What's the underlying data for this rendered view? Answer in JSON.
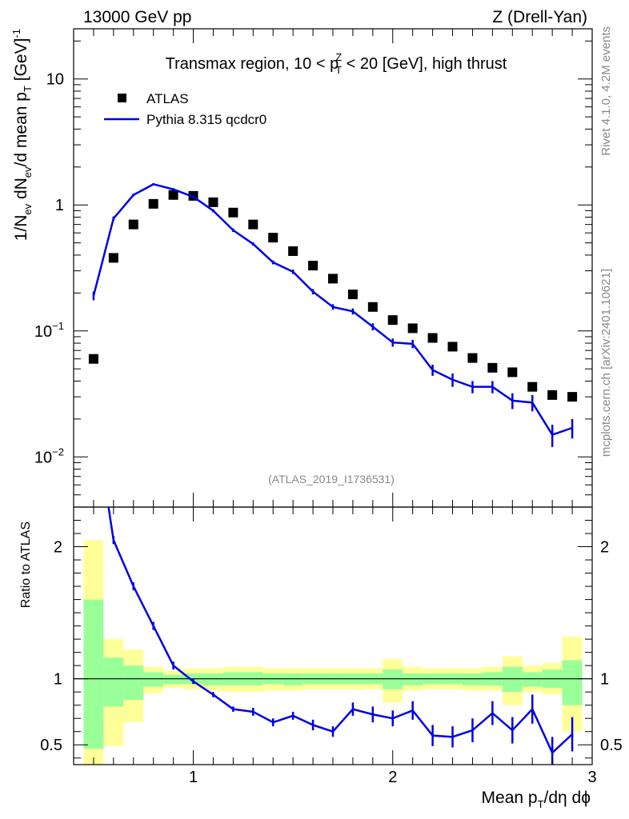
{
  "header": {
    "left": "13000 GeV pp",
    "right": "Z (Drell-Yan)"
  },
  "side": {
    "rivet": "Rivet 4.1.0,  4.2M events",
    "source": "mcplots.cern.ch [arXiv:2401.10621]"
  },
  "watermark": "(ATLAS_2019_I1736531)",
  "colors": {
    "data": "#000000",
    "mc": "#0000e6",
    "band_outer": "#ffff99",
    "band_inner": "#99ff99"
  },
  "chart_data": [
    {
      "type": "scatter",
      "panel": "main",
      "title_parts": {
        "pre": "Transmax region, 10 < p",
        "sup": "Z",
        "sub": "T",
        "post": " < 20 [GeV], high thrust"
      },
      "ylabel_parts": {
        "a": "1/N",
        "a_sub": "ev",
        "b": " dN",
        "b_sub": "ev",
        "c": "/d mean p",
        "c_sub": "T",
        "d": " [GeV]",
        "d_sup": "-1"
      },
      "yscale": "log",
      "xlim": [
        0.4,
        3.0
      ],
      "ylim": [
        0.004,
        25
      ],
      "xticks": [
        1,
        2,
        3
      ],
      "xtick_labels": [
        "1",
        "2",
        "3"
      ],
      "yticks": [
        0.01,
        0.1,
        1,
        10
      ],
      "ytick_labels": [
        {
          "base": "10",
          "exp": "−2"
        },
        {
          "base": "10",
          "exp": "−1"
        },
        {
          "base": "1",
          "exp": ""
        },
        {
          "base": "10",
          "exp": ""
        }
      ],
      "legend": {
        "position": "top-left",
        "entries": [
          {
            "label": "ATLAS",
            "marker": "square"
          },
          {
            "label": "Pythia 8.315 qcdcr0",
            "marker": "line"
          }
        ]
      },
      "series": [
        {
          "name": "ATLAS",
          "x": [
            0.5,
            0.6,
            0.7,
            0.8,
            0.9,
            1.0,
            1.1,
            1.2,
            1.3,
            1.4,
            1.5,
            1.6,
            1.7,
            1.8,
            1.9,
            2.0,
            2.1,
            2.2,
            2.3,
            2.4,
            2.5,
            2.6,
            2.7,
            2.8,
            2.9
          ],
          "y": [
            0.06,
            0.38,
            0.7,
            1.02,
            1.2,
            1.18,
            1.05,
            0.87,
            0.7,
            0.55,
            0.43,
            0.33,
            0.26,
            0.195,
            0.155,
            0.122,
            0.105,
            0.088,
            0.075,
            0.061,
            0.051,
            0.047,
            0.036,
            0.031,
            0.03
          ]
        },
        {
          "name": "Pythia 8.315 qcdcr0",
          "x": [
            0.5,
            0.6,
            0.7,
            0.8,
            0.9,
            1.0,
            1.1,
            1.2,
            1.3,
            1.4,
            1.5,
            1.6,
            1.7,
            1.8,
            1.9,
            2.0,
            2.1,
            2.2,
            2.3,
            2.4,
            2.5,
            2.6,
            2.7,
            2.8,
            2.9
          ],
          "y": [
            0.19,
            0.78,
            1.2,
            1.46,
            1.33,
            1.16,
            0.9,
            0.63,
            0.49,
            0.35,
            0.295,
            0.205,
            0.155,
            0.143,
            0.108,
            0.081,
            0.079,
            0.049,
            0.041,
            0.036,
            0.036,
            0.028,
            0.027,
            0.015,
            0.017
          ],
          "yerr": [
            0.015,
            0.03,
            0.03,
            0.03,
            0.03,
            0.03,
            0.025,
            0.02,
            0.015,
            0.012,
            0.012,
            0.01,
            0.008,
            0.008,
            0.007,
            0.006,
            0.006,
            0.005,
            0.005,
            0.004,
            0.004,
            0.004,
            0.004,
            0.003,
            0.003
          ]
        }
      ]
    },
    {
      "type": "line",
      "panel": "ratio",
      "ylabel": "Ratio to ATLAS",
      "xlabel_parts": {
        "pre": "Mean p",
        "sub": "T",
        "post": "/dη dϕ"
      },
      "xlim": [
        0.4,
        3.0
      ],
      "ylim": [
        0.35,
        2.3
      ],
      "xticks": [
        1,
        2,
        3
      ],
      "xtick_labels": [
        "1",
        "2",
        "3"
      ],
      "yticks": [
        0.5,
        1,
        2
      ],
      "ytick_labels": [
        "0.5",
        "1",
        "2"
      ],
      "bins": [
        {
          "x0": 0.45,
          "x1": 0.55,
          "outer": [
            0.3,
            2.05
          ],
          "inner": [
            0.47,
            1.6
          ]
        },
        {
          "x0": 0.55,
          "x1": 0.65,
          "outer": [
            0.49,
            1.3
          ],
          "inner": [
            0.79,
            1.16
          ]
        },
        {
          "x0": 0.65,
          "x1": 0.75,
          "outer": [
            0.67,
            1.22
          ],
          "inner": [
            0.84,
            1.1
          ]
        },
        {
          "x0": 0.75,
          "x1": 0.85,
          "outer": [
            0.89,
            1.09
          ],
          "inner": [
            0.94,
            1.05
          ]
        },
        {
          "x0": 0.85,
          "x1": 0.95,
          "outer": [
            0.93,
            1.06
          ],
          "inner": [
            0.96,
            1.03
          ]
        },
        {
          "x0": 0.95,
          "x1": 1.05,
          "outer": [
            0.92,
            1.08
          ],
          "inner": [
            0.96,
            1.04
          ]
        },
        {
          "x0": 1.05,
          "x1": 1.15,
          "outer": [
            0.91,
            1.08
          ],
          "inner": [
            0.95,
            1.04
          ]
        },
        {
          "x0": 1.15,
          "x1": 1.25,
          "outer": [
            0.9,
            1.09
          ],
          "inner": [
            0.95,
            1.05
          ]
        },
        {
          "x0": 1.25,
          "x1": 1.35,
          "outer": [
            0.9,
            1.09
          ],
          "inner": [
            0.95,
            1.05
          ]
        },
        {
          "x0": 1.35,
          "x1": 1.45,
          "outer": [
            0.91,
            1.08
          ],
          "inner": [
            0.96,
            1.04
          ]
        },
        {
          "x0": 1.45,
          "x1": 1.55,
          "outer": [
            0.91,
            1.08
          ],
          "inner": [
            0.95,
            1.04
          ]
        },
        {
          "x0": 1.55,
          "x1": 1.65,
          "outer": [
            0.92,
            1.08
          ],
          "inner": [
            0.96,
            1.04
          ]
        },
        {
          "x0": 1.65,
          "x1": 1.75,
          "outer": [
            0.92,
            1.08
          ],
          "inner": [
            0.96,
            1.04
          ]
        },
        {
          "x0": 1.75,
          "x1": 1.85,
          "outer": [
            0.92,
            1.08
          ],
          "inner": [
            0.96,
            1.04
          ]
        },
        {
          "x0": 1.85,
          "x1": 1.95,
          "outer": [
            0.92,
            1.08
          ],
          "inner": [
            0.96,
            1.04
          ]
        },
        {
          "x0": 1.95,
          "x1": 2.05,
          "outer": [
            0.82,
            1.15
          ],
          "inner": [
            0.92,
            1.07
          ]
        },
        {
          "x0": 2.05,
          "x1": 2.15,
          "outer": [
            0.91,
            1.09
          ],
          "inner": [
            0.95,
            1.04
          ]
        },
        {
          "x0": 2.15,
          "x1": 2.25,
          "outer": [
            0.92,
            1.08
          ],
          "inner": [
            0.96,
            1.04
          ]
        },
        {
          "x0": 2.25,
          "x1": 2.35,
          "outer": [
            0.92,
            1.08
          ],
          "inner": [
            0.96,
            1.04
          ]
        },
        {
          "x0": 2.35,
          "x1": 2.45,
          "outer": [
            0.91,
            1.08
          ],
          "inner": [
            0.95,
            1.04
          ]
        },
        {
          "x0": 2.45,
          "x1": 2.55,
          "outer": [
            0.91,
            1.09
          ],
          "inner": [
            0.95,
            1.05
          ]
        },
        {
          "x0": 2.55,
          "x1": 2.65,
          "outer": [
            0.8,
            1.17
          ],
          "inner": [
            0.9,
            1.09
          ]
        },
        {
          "x0": 2.65,
          "x1": 2.75,
          "outer": [
            0.9,
            1.1
          ],
          "inner": [
            0.94,
            1.05
          ]
        },
        {
          "x0": 2.75,
          "x1": 2.85,
          "outer": [
            0.88,
            1.12
          ],
          "inner": [
            0.93,
            1.07
          ]
        },
        {
          "x0": 2.85,
          "x1": 2.95,
          "outer": [
            0.6,
            1.32
          ],
          "inner": [
            0.8,
            1.14
          ]
        }
      ],
      "series": [
        {
          "name": "Pythia 8.315 qcdcr0 / ATLAS",
          "x": [
            0.6,
            0.7,
            0.8,
            0.9,
            1.0,
            1.1,
            1.2,
            1.3,
            1.4,
            1.5,
            1.6,
            1.7,
            1.8,
            1.9,
            2.0,
            2.1,
            2.2,
            2.3,
            2.4,
            2.5,
            2.6,
            2.7,
            2.8,
            2.9
          ],
          "y": [
            2.05,
            1.7,
            1.4,
            1.1,
            0.98,
            0.88,
            0.77,
            0.75,
            0.67,
            0.72,
            0.65,
            0.6,
            0.77,
            0.73,
            0.7,
            0.76,
            0.57,
            0.56,
            0.61,
            0.74,
            0.61,
            0.77,
            0.44,
            0.58
          ],
          "yerr": [
            0.03,
            0.03,
            0.03,
            0.03,
            0.02,
            0.02,
            0.02,
            0.03,
            0.03,
            0.03,
            0.04,
            0.04,
            0.05,
            0.06,
            0.06,
            0.07,
            0.08,
            0.08,
            0.09,
            0.09,
            0.1,
            0.11,
            0.12,
            0.13
          ]
        }
      ]
    }
  ]
}
